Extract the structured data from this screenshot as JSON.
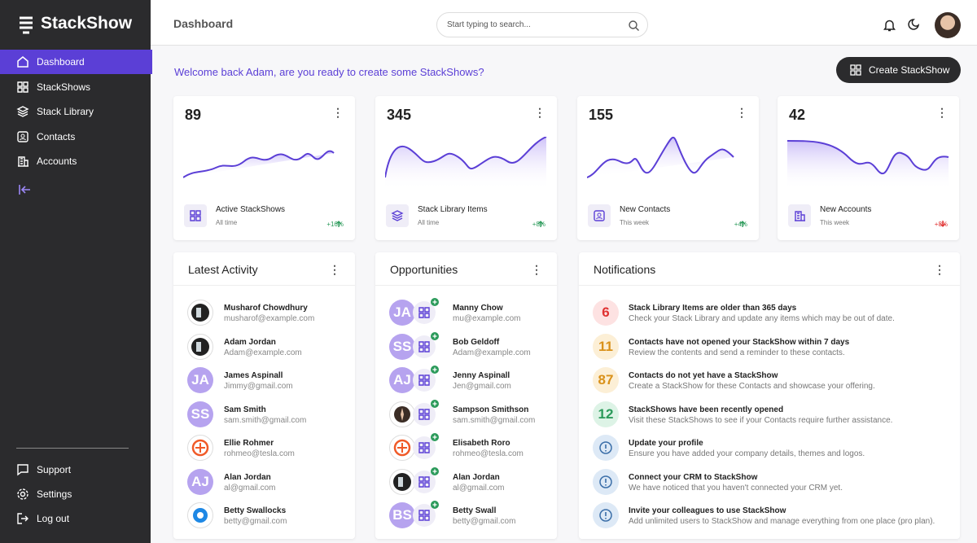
{
  "sidebar": {
    "brand": "StackShow",
    "nav": [
      "Dashboard",
      "StackShows",
      "Stack Library",
      "Contacts",
      "Accounts"
    ],
    "footer": [
      "Support",
      "Settings",
      "Log out"
    ]
  },
  "header": {
    "title": "Dashboard",
    "search_placeholder": "Start typing to search..."
  },
  "welcome": "Welcome back Adam, are you ready to create some StackShows?",
  "create_button": "Create StackShow",
  "stats": [
    {
      "value": 89,
      "label": "Active StackShows",
      "period": "All time",
      "change": "+16%",
      "change_color": "#2b9a5a"
    },
    {
      "value": 345,
      "label": "Stack Library Items",
      "period": "All time",
      "change": "+8%",
      "change_color": "#2b9a5a"
    },
    {
      "value": 155,
      "label": "New Contacts",
      "period": "This week",
      "change": "+4%",
      "change_color": "#2b9a5a"
    },
    {
      "value": 42,
      "label": "New Accounts",
      "period": "This week",
      "change": "+8%",
      "change_color": "#e03131"
    }
  ],
  "activity": {
    "title": "Latest Activity",
    "items": [
      {
        "name": "Musharof Chowdhury",
        "email": "musharof@example.com"
      },
      {
        "name": "Adam Jordan",
        "email": "Adam@example.com"
      },
      {
        "initials": "JA",
        "name": "James Aspinall",
        "email": "Jimmy@gmail.com"
      },
      {
        "initials": "SS",
        "name": "Sam Smith",
        "email": "sam.smith@gmail.com"
      },
      {
        "name": "Ellie Rohmer",
        "email": "rohmeo@tesla.com"
      },
      {
        "initials": "AJ",
        "name": "Alan Jordan",
        "email": "al@gmail.com"
      },
      {
        "name": "Betty Swallocks",
        "email": "betty@gmail.com"
      }
    ]
  },
  "opportunities": {
    "title": "Opportunities",
    "items": [
      {
        "initials": "JA",
        "name": "Manny Chow",
        "email": "mu@example.com"
      },
      {
        "initials": "SS",
        "name": "Bob Geldoff",
        "email": "Adam@example.com"
      },
      {
        "initials": "AJ",
        "name": "Jenny Aspinall",
        "email": "Jen@gmail.com"
      },
      {
        "name": "Sampson Smithson",
        "email": "sam.smith@gmail.com"
      },
      {
        "name": "Elisabeth Roro",
        "email": "rohmeo@tesla.com"
      },
      {
        "name": "Alan Jordan",
        "email": "al@gmail.com"
      },
      {
        "initials": "BS",
        "name": "Betty Swall",
        "email": "betty@gmail.com"
      }
    ]
  },
  "notifications": {
    "title": "Notifications",
    "items": [
      {
        "badge": 6,
        "color": "#e03131",
        "bg": "#fde2e2",
        "title": "Stack Library Items are older than 365 days",
        "text": "Check your Stack Library and update any items which may be out of date."
      },
      {
        "badge": 11,
        "color": "#d9911a",
        "bg": "#fcefd6",
        "title": "Contacts have not opened your StackShow within 7 days",
        "text": "Review the contents and send a reminder to these contacts."
      },
      {
        "badge": 87,
        "color": "#d9911a",
        "bg": "#fcefd6",
        "title": "Contacts do not yet have a StackShow",
        "text": "Create a StackShow for these Contacts and showcase your offering."
      },
      {
        "badge": 12,
        "color": "#2b9a5a",
        "bg": "#ddf3e6",
        "title": "StackShows have been recently opened",
        "text": "Visit these StackShows to see if your Contacts require further assistance."
      },
      {
        "color": "#3a6ea8",
        "bg": "#dde9f6",
        "title": "Update your profile",
        "text": "Ensure you have added your company details, themes and logos."
      },
      {
        "color": "#3a6ea8",
        "bg": "#dde9f6",
        "title": "Connect your CRM to StackShow",
        "text": "We have noticed that you haven't connected your CRM yet."
      },
      {
        "color": "#3a6ea8",
        "bg": "#dde9f6",
        "title": "Invite your colleagues to use StackShow",
        "text": "Add unlimited users to StackShow and manage everything from one place (pro plan)."
      }
    ]
  }
}
